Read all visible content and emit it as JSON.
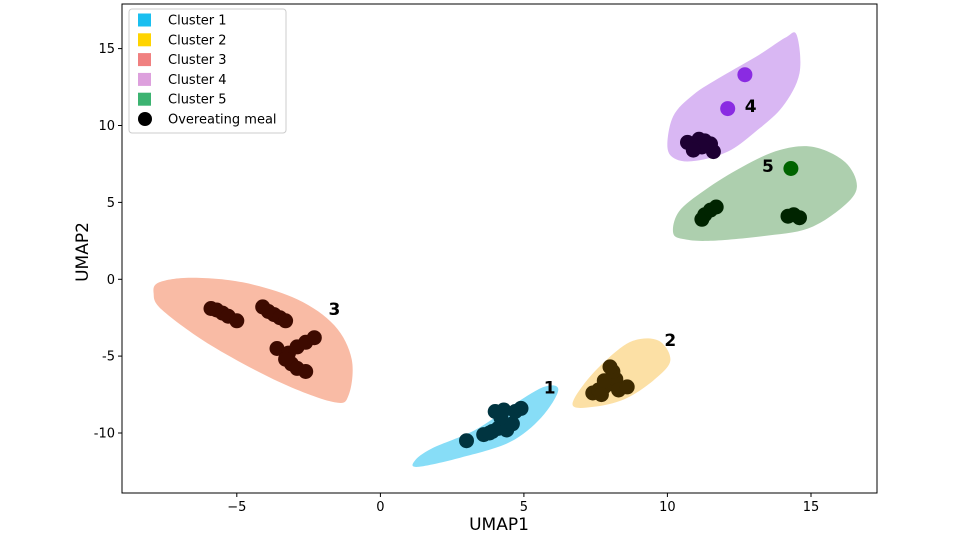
{
  "chart_data": {
    "type": "scatter",
    "title": "",
    "xlabel": "UMAP1",
    "ylabel": "UMAP2",
    "xlim": [
      -9,
      17.3
    ],
    "ylim": [
      -13.9,
      17.9
    ],
    "xticks": [
      {
        "value": -5,
        "label": "−5"
      },
      {
        "value": 0,
        "label": "0"
      },
      {
        "value": 5,
        "label": "5"
      },
      {
        "value": 10,
        "label": "10"
      },
      {
        "value": 15,
        "label": "15"
      }
    ],
    "yticks": [
      {
        "value": -10,
        "label": "-10"
      },
      {
        "value": -5,
        "label": "-5"
      },
      {
        "value": 0,
        "label": "0"
      },
      {
        "value": 5,
        "label": "5"
      },
      {
        "value": 10,
        "label": "10"
      },
      {
        "value": 15,
        "label": "15"
      }
    ],
    "legend": {
      "position": "top-left",
      "entries": [
        {
          "label": "Cluster 1",
          "color": "#1ABFF0",
          "marker": "square"
        },
        {
          "label": "Cluster 2",
          "color": "#FFD400",
          "marker": "square"
        },
        {
          "label": "Cluster 3",
          "color": "#F08080",
          "marker": "square"
        },
        {
          "label": "Cluster 4",
          "color": "#DDA0DD",
          "marker": "square"
        },
        {
          "label": "Cluster 5",
          "color": "#3CB371",
          "marker": "square"
        },
        {
          "label": "Overeating meal",
          "color": "#000000",
          "marker": "circle"
        }
      ]
    },
    "clusters": [
      {
        "name": "Cluster 1",
        "label": "1",
        "fill": "#87DDF7",
        "point_color": "#003440",
        "label_pos": [
          5.9,
          -7.1
        ],
        "hull": [
          [
            1.3,
            -12.2
          ],
          [
            1.2,
            -11.8
          ],
          [
            1.8,
            -11.0
          ],
          [
            3.3,
            -9.8
          ],
          [
            4.6,
            -8.2
          ],
          [
            5.7,
            -7.0
          ],
          [
            6.2,
            -7.2
          ],
          [
            5.6,
            -9.0
          ],
          [
            4.5,
            -10.6
          ],
          [
            2.8,
            -11.6
          ]
        ],
        "points": [
          [
            3.0,
            -10.5
          ],
          [
            3.6,
            -10.1
          ],
          [
            3.9,
            -9.9
          ],
          [
            4.1,
            -9.7
          ],
          [
            4.4,
            -9.8
          ],
          [
            4.6,
            -9.4
          ],
          [
            4.2,
            -9.0
          ],
          [
            4.7,
            -8.6
          ],
          [
            4.9,
            -8.4
          ],
          [
            4.3,
            -8.5
          ],
          [
            4.0,
            -8.6
          ],
          [
            3.8,
            -10.0
          ]
        ]
      },
      {
        "name": "Cluster 2",
        "label": "2",
        "fill": "#FCE0A5",
        "point_color": "#3D2A00",
        "label_pos": [
          10.1,
          -4.0
        ],
        "hull": [
          [
            6.7,
            -8.2
          ],
          [
            7.1,
            -6.8
          ],
          [
            7.9,
            -5.2
          ],
          [
            8.8,
            -4.0
          ],
          [
            9.7,
            -4.0
          ],
          [
            10.1,
            -5.3
          ],
          [
            9.5,
            -6.6
          ],
          [
            8.5,
            -7.8
          ],
          [
            7.4,
            -8.3
          ]
        ],
        "points": [
          [
            7.4,
            -7.4
          ],
          [
            7.6,
            -7.2
          ],
          [
            7.8,
            -7.0
          ],
          [
            8.0,
            -6.8
          ],
          [
            8.2,
            -6.5
          ],
          [
            8.1,
            -6.0
          ],
          [
            8.0,
            -5.7
          ],
          [
            7.8,
            -6.6
          ],
          [
            8.3,
            -7.2
          ],
          [
            8.6,
            -7.0
          ],
          [
            7.7,
            -7.5
          ]
        ]
      },
      {
        "name": "Cluster 3",
        "label": "3",
        "fill": "#F9BBA5",
        "point_color": "#3D0A00",
        "label_pos": [
          -1.6,
          -2.0
        ],
        "hull": [
          [
            -7.9,
            -0.9
          ],
          [
            -7.7,
            -0.2
          ],
          [
            -6.6,
            0.1
          ],
          [
            -4.8,
            -0.2
          ],
          [
            -2.9,
            -1.3
          ],
          [
            -1.6,
            -3.0
          ],
          [
            -1.0,
            -5.2
          ],
          [
            -1.1,
            -7.5
          ],
          [
            -1.6,
            -8.0
          ],
          [
            -3.5,
            -6.7
          ],
          [
            -5.9,
            -4.3
          ],
          [
            -7.6,
            -2.0
          ]
        ],
        "points": [
          [
            -5.9,
            -1.9
          ],
          [
            -5.7,
            -2.0
          ],
          [
            -5.5,
            -2.2
          ],
          [
            -5.3,
            -2.4
          ],
          [
            -5.0,
            -2.7
          ],
          [
            -4.1,
            -1.8
          ],
          [
            -3.9,
            -2.1
          ],
          [
            -3.7,
            -2.3
          ],
          [
            -3.5,
            -2.5
          ],
          [
            -3.3,
            -2.7
          ],
          [
            -3.6,
            -4.5
          ],
          [
            -3.2,
            -4.8
          ],
          [
            -2.9,
            -4.4
          ],
          [
            -2.6,
            -4.1
          ],
          [
            -2.3,
            -3.8
          ],
          [
            -3.1,
            -5.5
          ],
          [
            -2.9,
            -5.8
          ],
          [
            -2.6,
            -6.0
          ],
          [
            -3.3,
            -5.2
          ]
        ]
      },
      {
        "name": "Cluster 4",
        "label": "4",
        "fill": "#D9B7F3",
        "point_color": "#1E0033",
        "label_pos": [
          12.9,
          11.2
        ],
        "hull": [
          [
            10.0,
            8.6
          ],
          [
            10.2,
            10.6
          ],
          [
            10.9,
            12.0
          ],
          [
            11.9,
            13.2
          ],
          [
            13.2,
            14.6
          ],
          [
            14.1,
            15.7
          ],
          [
            14.5,
            15.9
          ],
          [
            14.6,
            13.4
          ],
          [
            14.0,
            11.2
          ],
          [
            13.0,
            9.5
          ],
          [
            12.1,
            8.3
          ],
          [
            11.0,
            7.7
          ],
          [
            10.3,
            7.8
          ]
        ],
        "points": [
          [
            10.7,
            8.9
          ],
          [
            10.9,
            8.8
          ],
          [
            11.1,
            9.1
          ],
          [
            11.3,
            9.0
          ],
          [
            11.5,
            8.8
          ],
          [
            11.6,
            8.3
          ],
          [
            11.2,
            8.6
          ],
          [
            10.9,
            8.4
          ]
        ]
      },
      {
        "name": "Cluster 5",
        "label": "5",
        "fill": "#ADCFAE",
        "point_color": "#002400",
        "label_pos": [
          13.5,
          7.3
        ],
        "hull": [
          [
            10.2,
            3.0
          ],
          [
            10.4,
            4.4
          ],
          [
            11.3,
            5.8
          ],
          [
            12.6,
            7.3
          ],
          [
            13.9,
            8.4
          ],
          [
            15.1,
            8.6
          ],
          [
            16.2,
            7.6
          ],
          [
            16.6,
            6.0
          ],
          [
            16.1,
            4.7
          ],
          [
            14.9,
            3.3
          ],
          [
            13.3,
            2.8
          ],
          [
            11.5,
            2.5
          ],
          [
            10.6,
            2.6
          ]
        ],
        "points": [
          [
            11.2,
            3.9
          ],
          [
            11.3,
            4.2
          ],
          [
            11.5,
            4.5
          ],
          [
            11.7,
            4.7
          ],
          [
            14.2,
            4.1
          ],
          [
            14.4,
            4.2
          ],
          [
            14.6,
            4.0
          ]
        ]
      }
    ],
    "highlight_points": [
      {
        "cluster": "Cluster 4",
        "color": "#8A2BE2",
        "points": [
          [
            12.7,
            13.3
          ],
          [
            12.1,
            11.1
          ]
        ]
      },
      {
        "cluster": "Cluster 5",
        "color": "#006400",
        "points": [
          [
            14.3,
            7.2
          ]
        ]
      }
    ]
  }
}
